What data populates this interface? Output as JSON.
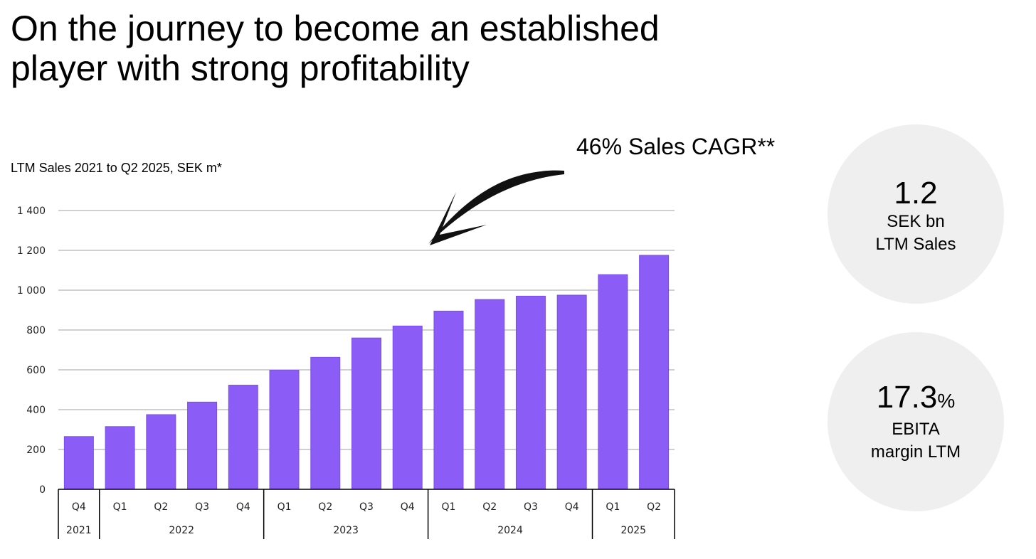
{
  "title": {
    "line1": "On the journey to become an established",
    "line2": "player with strong profitability"
  },
  "annotation": {
    "cagr": "46% Sales CAGR**"
  },
  "kpis": {
    "sales": {
      "value": "1.2",
      "line1": "SEK bn",
      "line2": "LTM Sales"
    },
    "margin": {
      "value": "17.3",
      "unit": "%",
      "line1": "EBITA",
      "line2": "margin LTM"
    }
  },
  "colors": {
    "bar": "#8b5cf6",
    "grid": "#d0d0d0",
    "circle": "#efefef"
  },
  "chart_data": {
    "type": "bar",
    "title": "LTM Sales 2021 to Q2 2025, SEK m*",
    "xlabel": "",
    "ylabel": "",
    "ylim": [
      0,
      1400
    ],
    "yticks": [
      0,
      200,
      400,
      600,
      800,
      1000,
      1200,
      1400
    ],
    "ytick_labels": [
      "0",
      "200",
      "400",
      "600",
      "800",
      "1 000",
      "1 200",
      "1 400"
    ],
    "grid": true,
    "categories": [
      "Q4",
      "Q1",
      "Q2",
      "Q3",
      "Q4",
      "Q1",
      "Q2",
      "Q3",
      "Q4",
      "Q1",
      "Q2",
      "Q3",
      "Q4",
      "Q1",
      "Q2"
    ],
    "values": [
      265,
      315,
      375,
      438,
      523,
      598,
      663,
      760,
      820,
      895,
      953,
      970,
      975,
      1078,
      1175
    ],
    "year_groups": [
      {
        "label": "2021",
        "start": 0,
        "count": 1
      },
      {
        "label": "2022",
        "start": 1,
        "count": 4
      },
      {
        "label": "2023",
        "start": 5,
        "count": 4
      },
      {
        "label": "2024",
        "start": 9,
        "count": 4
      },
      {
        "label": "2025",
        "start": 13,
        "count": 2
      }
    ]
  }
}
